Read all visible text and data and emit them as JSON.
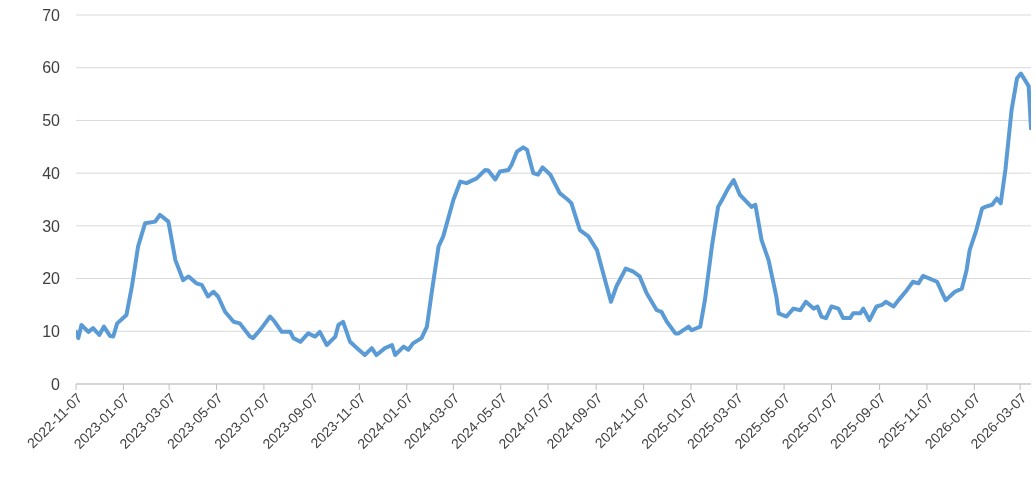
{
  "chart_data": {
    "type": "line",
    "x": [
      "2022-11-07",
      "2022-11-10",
      "2022-11-14",
      "2022-11-23",
      "2022-11-29",
      "2022-12-07",
      "2022-12-13",
      "2022-12-21",
      "2022-12-25",
      "2022-12-30",
      "2023-01-11",
      "2023-01-18",
      "2023-01-26",
      "2023-02-04",
      "2023-02-17",
      "2023-02-23",
      "2023-03-06",
      "2023-03-15",
      "2023-03-25",
      "2023-04-01",
      "2023-04-11",
      "2023-04-18",
      "2023-04-26",
      "2023-05-03",
      "2023-05-09",
      "2023-05-18",
      "2023-05-29",
      "2023-06-06",
      "2023-06-19",
      "2023-06-23",
      "2023-07-04",
      "2023-07-15",
      "2023-07-21",
      "2023-07-30",
      "2023-08-10",
      "2023-08-14",
      "2023-08-23",
      "2023-09-02",
      "2023-09-11",
      "2023-09-17",
      "2023-09-26",
      "2023-10-07",
      "2023-10-11",
      "2023-10-17",
      "2023-10-26",
      "2023-11-04",
      "2023-11-14",
      "2023-11-23",
      "2023-11-29",
      "2023-12-10",
      "2023-12-19",
      "2023-12-23",
      "2024-01-03",
      "2024-01-09",
      "2024-01-15",
      "2024-01-26",
      "2024-02-02",
      "2024-02-08",
      "2024-02-17",
      "2024-02-23",
      "2024-03-07",
      "2024-03-16",
      "2024-03-24",
      "2024-04-06",
      "2024-04-17",
      "2024-04-21",
      "2024-04-30",
      "2024-05-06",
      "2024-05-17",
      "2024-05-21",
      "2024-05-28",
      "2024-06-05",
      "2024-06-10",
      "2024-06-18",
      "2024-06-24",
      "2024-06-30",
      "2024-07-10",
      "2024-07-22",
      "2024-08-02",
      "2024-08-06",
      "2024-08-17",
      "2024-08-28",
      "2024-09-08",
      "2024-09-16",
      "2024-09-26",
      "2024-10-03",
      "2024-10-15",
      "2024-10-25",
      "2024-11-02",
      "2024-11-11",
      "2024-11-24",
      "2024-11-30",
      "2024-12-07",
      "2024-12-18",
      "2024-12-22",
      "2025-01-04",
      "2025-01-08",
      "2025-01-19",
      "2025-01-25",
      "2025-02-03",
      "2025-02-11",
      "2025-02-16",
      "2025-02-24",
      "2025-03-03",
      "2025-03-11",
      "2025-03-26",
      "2025-03-31",
      "2025-04-08",
      "2025-04-17",
      "2025-04-27",
      "2025-04-30",
      "2025-05-10",
      "2025-05-19",
      "2025-05-28",
      "2025-06-04",
      "2025-06-14",
      "2025-06-19",
      "2025-06-24",
      "2025-06-30",
      "2025-07-07",
      "2025-07-16",
      "2025-07-22",
      "2025-07-31",
      "2025-08-04",
      "2025-08-13",
      "2025-08-17",
      "2025-08-25",
      "2025-09-03",
      "2025-09-10",
      "2025-09-15",
      "2025-09-25",
      "2025-10-03",
      "2025-10-12",
      "2025-10-20",
      "2025-10-27",
      "2025-11-02",
      "2025-11-20",
      "2025-12-01",
      "2025-12-13",
      "2025-12-22",
      "2025-12-28",
      "2026-01-01",
      "2026-01-09",
      "2026-01-17",
      "2026-01-21",
      "2026-01-30",
      "2026-02-05",
      "2026-02-10",
      "2026-02-16",
      "2026-02-24",
      "2026-03-03",
      "2026-03-08",
      "2026-03-18",
      "2026-03-21"
    ],
    "series": [
      {
        "color": "#5b9bd5",
        "values": [
          9.9,
          8.7,
          11.2,
          9.9,
          10.6,
          9.3,
          10.9,
          9.1,
          9.0,
          11.5,
          13.1,
          18.5,
          26.1,
          30.5,
          30.8,
          32.1,
          30.8,
          23.5,
          19.7,
          20.4,
          19.1,
          18.8,
          16.6,
          17.5,
          16.6,
          13.7,
          11.8,
          11.5,
          9.0,
          8.7,
          10.6,
          12.8,
          11.8,
          9.9,
          9.9,
          8.7,
          8.0,
          9.6,
          9.0,
          9.9,
          7.4,
          9.0,
          11.2,
          11.8,
          8.0,
          6.8,
          5.5,
          6.8,
          5.5,
          6.8,
          7.4,
          5.5,
          7.1,
          6.5,
          7.7,
          8.7,
          10.9,
          17.2,
          26.1,
          28.0,
          34.9,
          38.4,
          38.1,
          39.0,
          40.6,
          40.5,
          38.8,
          40.3,
          40.6,
          41.6,
          44.1,
          44.9,
          44.4,
          40.0,
          39.7,
          41.1,
          39.7,
          36.2,
          34.9,
          34.3,
          29.2,
          28.0,
          25.4,
          21.0,
          15.6,
          18.5,
          21.9,
          21.3,
          20.4,
          17.2,
          14.0,
          13.7,
          11.8,
          9.6,
          9.6,
          10.9,
          10.2,
          10.9,
          15.9,
          26.1,
          33.6,
          34.9,
          37.1,
          38.7,
          35.9,
          33.6,
          34.0,
          27.3,
          23.5,
          16.6,
          13.4,
          12.8,
          14.3,
          14.0,
          15.6,
          14.3,
          14.7,
          12.8,
          12.5,
          14.7,
          14.3,
          12.5,
          12.5,
          13.4,
          13.4,
          14.3,
          12.1,
          14.7,
          15.0,
          15.6,
          14.7,
          16.2,
          17.8,
          19.4,
          19.1,
          20.5,
          19.4,
          15.9,
          17.5,
          18.1,
          21.6,
          25.4,
          28.9,
          33.3,
          33.6,
          34.0,
          35.2,
          34.3,
          40.6,
          52.0,
          58.0,
          58.9,
          56.5,
          48.5
        ]
      }
    ],
    "xlim": [
      "2022-11-07",
      "2026-03-21"
    ],
    "xticks": [
      "2022-11-07",
      "2023-01-07",
      "2023-03-07",
      "2023-05-07",
      "2023-07-07",
      "2023-09-07",
      "2023-11-07",
      "2024-01-07",
      "2024-03-07",
      "2024-05-07",
      "2024-07-07",
      "2024-09-07",
      "2024-11-07",
      "2025-01-07",
      "2025-03-07",
      "2025-05-07",
      "2025-07-07",
      "2025-09-07",
      "2025-11-07",
      "2026-01-07",
      "2026-03-07"
    ],
    "ylim": [
      0,
      70
    ],
    "yticks": [
      0,
      10,
      20,
      30,
      40,
      50,
      60,
      70
    ],
    "grid": "y",
    "marker": "none",
    "line_style": "solid"
  }
}
